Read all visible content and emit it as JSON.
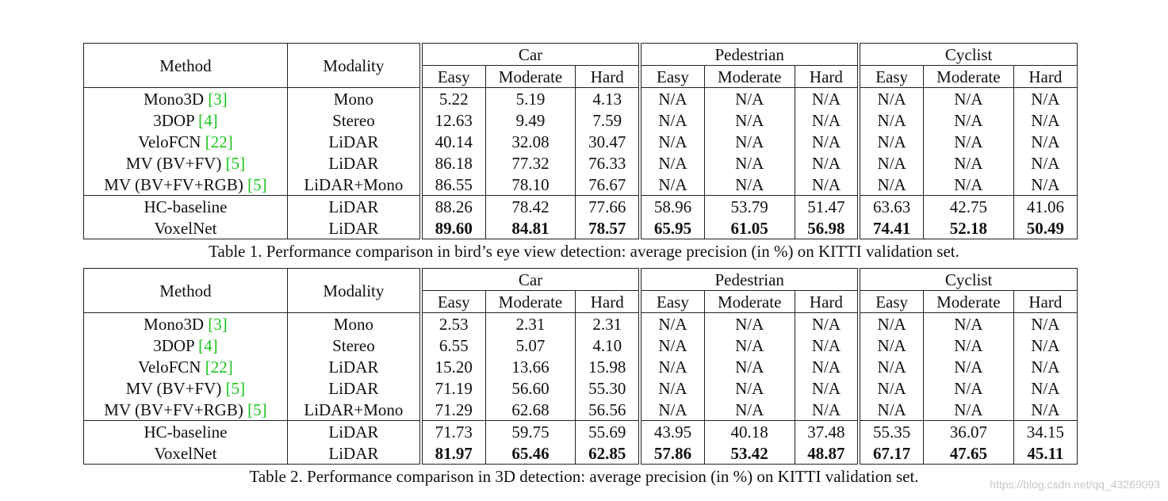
{
  "tables": [
    {
      "caption": "Table 1. Performance comparison in bird’s eye view detection: average precision (in %) on KITTI validation set.",
      "header": {
        "method": "Method",
        "modality": "Modality",
        "groups": [
          "Car",
          "Pedestrian",
          "Cyclist"
        ],
        "subcols": [
          "Easy",
          "Moderate",
          "Hard"
        ]
      },
      "rows": [
        {
          "method": "Mono3D ",
          "cite": "[3]",
          "modality": "Mono",
          "values": [
            "5.22",
            "5.19",
            "4.13",
            "N/A",
            "N/A",
            "N/A",
            "N/A",
            "N/A",
            "N/A"
          ]
        },
        {
          "method": "3DOP ",
          "cite": "[4]",
          "modality": "Stereo",
          "values": [
            "12.63",
            "9.49",
            "7.59",
            "N/A",
            "N/A",
            "N/A",
            "N/A",
            "N/A",
            "N/A"
          ]
        },
        {
          "method": "VeloFCN ",
          "cite": "[22]",
          "modality": "LiDAR",
          "values": [
            "40.14",
            "32.08",
            "30.47",
            "N/A",
            "N/A",
            "N/A",
            "N/A",
            "N/A",
            "N/A"
          ]
        },
        {
          "method": "MV (BV+FV) ",
          "cite": "[5]",
          "modality": "LiDAR",
          "values": [
            "86.18",
            "77.32",
            "76.33",
            "N/A",
            "N/A",
            "N/A",
            "N/A",
            "N/A",
            "N/A"
          ]
        },
        {
          "method": "MV (BV+FV+RGB) ",
          "cite": "[5]",
          "modality": "LiDAR+Mono",
          "values": [
            "86.55",
            "78.10",
            "76.67",
            "N/A",
            "N/A",
            "N/A",
            "N/A",
            "N/A",
            "N/A"
          ]
        },
        {
          "method": "HC-baseline",
          "cite": "",
          "modality": "LiDAR",
          "values": [
            "88.26",
            "78.42",
            "77.66",
            "58.96",
            "53.79",
            "51.47",
            "63.63",
            "42.75",
            "41.06"
          ]
        },
        {
          "method": "VoxelNet",
          "cite": "",
          "modality": "LiDAR",
          "values": [
            "89.60",
            "84.81",
            "78.57",
            "65.95",
            "61.05",
            "56.98",
            "74.41",
            "52.18",
            "50.49"
          ]
        }
      ]
    },
    {
      "caption": "Table 2. Performance comparison in 3D detection: average precision (in %) on KITTI validation set.",
      "header": {
        "method": "Method",
        "modality": "Modality",
        "groups": [
          "Car",
          "Pedestrian",
          "Cyclist"
        ],
        "subcols": [
          "Easy",
          "Moderate",
          "Hard"
        ]
      },
      "rows": [
        {
          "method": "Mono3D ",
          "cite": "[3]",
          "modality": "Mono",
          "values": [
            "2.53",
            "2.31",
            "2.31",
            "N/A",
            "N/A",
            "N/A",
            "N/A",
            "N/A",
            "N/A"
          ]
        },
        {
          "method": "3DOP ",
          "cite": "[4]",
          "modality": "Stereo",
          "values": [
            "6.55",
            "5.07",
            "4.10",
            "N/A",
            "N/A",
            "N/A",
            "N/A",
            "N/A",
            "N/A"
          ]
        },
        {
          "method": "VeloFCN ",
          "cite": "[22]",
          "modality": "LiDAR",
          "values": [
            "15.20",
            "13.66",
            "15.98",
            "N/A",
            "N/A",
            "N/A",
            "N/A",
            "N/A",
            "N/A"
          ]
        },
        {
          "method": "MV (BV+FV) ",
          "cite": "[5]",
          "modality": "LiDAR",
          "values": [
            "71.19",
            "56.60",
            "55.30",
            "N/A",
            "N/A",
            "N/A",
            "N/A",
            "N/A",
            "N/A"
          ]
        },
        {
          "method": "MV (BV+FV+RGB) ",
          "cite": "[5]",
          "modality": "LiDAR+Mono",
          "values": [
            "71.29",
            "62.68",
            "56.56",
            "N/A",
            "N/A",
            "N/A",
            "N/A",
            "N/A",
            "N/A"
          ]
        },
        {
          "method": "HC-baseline",
          "cite": "",
          "modality": "LiDAR",
          "values": [
            "71.73",
            "59.75",
            "55.69",
            "43.95",
            "40.18",
            "37.48",
            "55.35",
            "36.07",
            "34.15"
          ]
        },
        {
          "method": "VoxelNet",
          "cite": "",
          "modality": "LiDAR",
          "values": [
            "81.97",
            "65.46",
            "62.85",
            "57.86",
            "53.42",
            "48.87",
            "67.17",
            "47.65",
            "45.11"
          ]
        }
      ]
    }
  ],
  "watermark": "https://blog.csdn.net/qq_43269093",
  "colors": {
    "citation": "#1bc41b",
    "rule": "#222222",
    "watermark": "#c8c8c8"
  }
}
